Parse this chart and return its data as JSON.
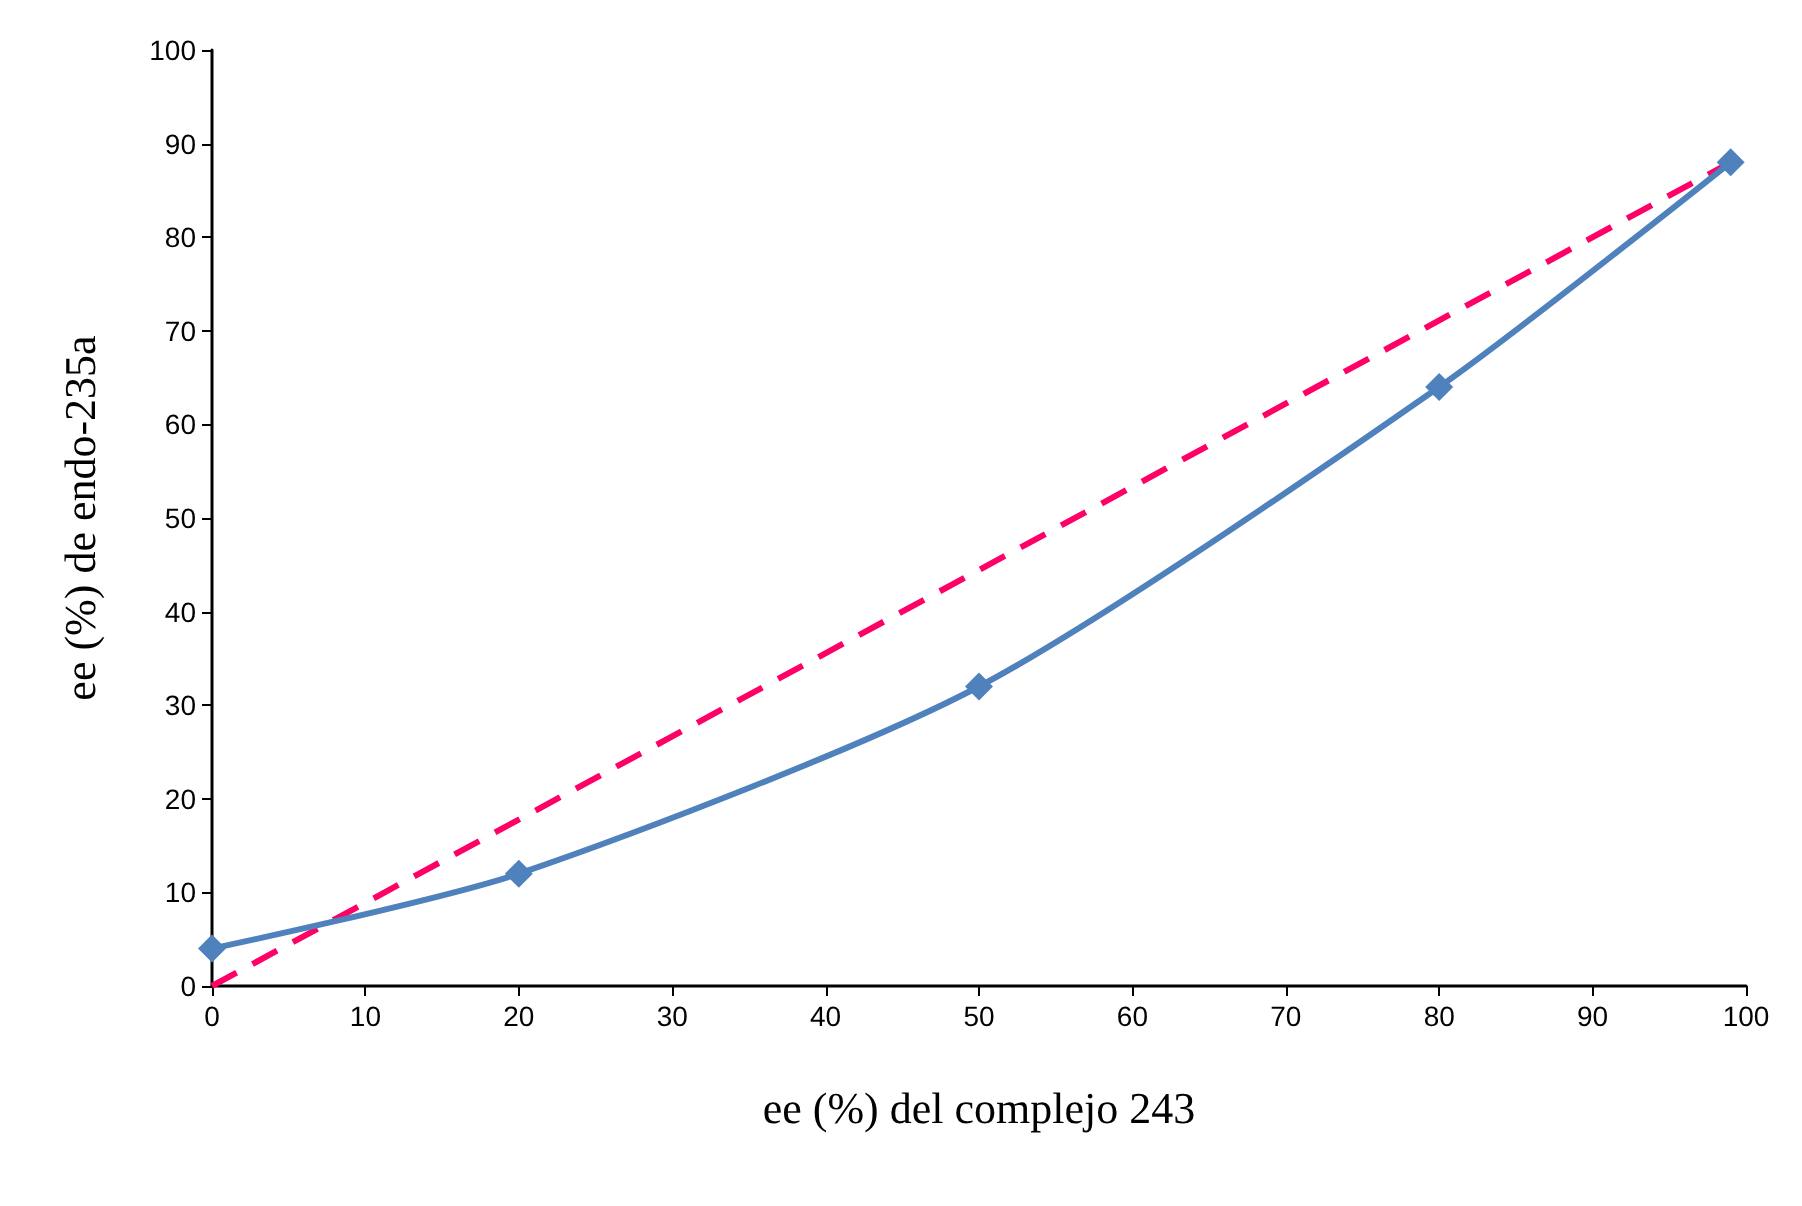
{
  "chart_data": {
    "type": "line",
    "xlabel": "ee (%) del complejo 243",
    "ylabel": "ee (%) de endo-235a",
    "xlim": [
      0,
      100
    ],
    "xticks": [
      0,
      10,
      20,
      30,
      40,
      50,
      60,
      70,
      80,
      90,
      100
    ],
    "ylim": [
      0,
      100
    ],
    "yticks": [
      0,
      10,
      20,
      30,
      40,
      50,
      60,
      70,
      80,
      90,
      100
    ],
    "grid": false,
    "series": [
      {
        "color": "#4f81bd",
        "x": [
          0,
          20,
          50,
          80,
          99
        ],
        "values": [
          4,
          12,
          32,
          64,
          88
        ],
        "marker": "diamond",
        "line_style": "solid"
      },
      {
        "color": "#ff0066",
        "x": [
          0,
          99
        ],
        "values": [
          0,
          88
        ],
        "marker": "none",
        "line_style": "dashed"
      }
    ]
  }
}
